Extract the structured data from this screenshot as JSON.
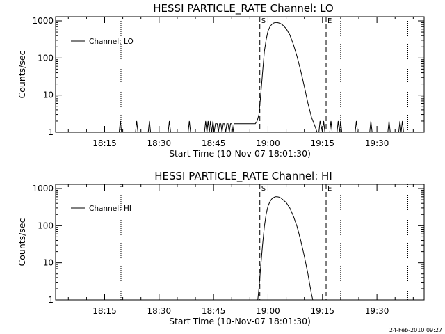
{
  "timestamp": "24-Feb-2010 09:27",
  "colors": {
    "background": "#ffffff",
    "foreground": "#000000"
  },
  "chart_data": [
    {
      "type": "line",
      "title": "HESSI PARTICLE_RATE Channel: LO",
      "xlabel": "Start Time (10-Nov-07 18:01:30)",
      "ylabel": "Counts/sec",
      "xlim": [
        "18:01:30",
        "19:43:00"
      ],
      "ylim": [
        1,
        1000
      ],
      "yscale": "log",
      "xticks": [
        "18:15",
        "18:30",
        "18:45",
        "19:00",
        "19:15",
        "19:30"
      ],
      "yticks": [
        "1",
        "10",
        "100",
        "1000"
      ],
      "legend": {
        "label": "Channel: LO",
        "position": "upper-left"
      },
      "markers": [
        {
          "label": "S",
          "time": "18:57:45",
          "style": "dashed"
        },
        {
          "label": "E",
          "time": "19:16:00",
          "style": "dashed"
        }
      ],
      "reference_lines": [
        {
          "time": "18:19:30",
          "style": "dotted"
        },
        {
          "time": "19:20:00",
          "style": "dotted"
        },
        {
          "time": "19:38:30",
          "style": "dotted"
        }
      ],
      "series": [
        {
          "name": "Channel: LO",
          "x": [
            "18:01:30",
            "18:19:00",
            "18:19:20",
            "18:19:40",
            "18:20:00",
            "18:23:30",
            "18:23:50",
            "18:24:10",
            "18:27:00",
            "18:27:20",
            "18:27:40",
            "18:32:30",
            "18:32:50",
            "18:33:10",
            "18:38:00",
            "18:38:20",
            "18:38:40",
            "18:42:30",
            "18:42:50",
            "18:43:10",
            "18:43:30",
            "18:43:50",
            "18:44:10",
            "18:44:30",
            "18:44:50",
            "18:45:10",
            "18:45:30",
            "18:46:00",
            "18:46:20",
            "18:46:40",
            "18:47:00",
            "18:47:20",
            "18:47:40",
            "18:48:00",
            "18:48:20",
            "18:48:40",
            "18:49:00",
            "18:49:20",
            "18:49:40",
            "18:50:00",
            "18:50:20",
            "18:50:40",
            "18:51:00",
            "18:56:30",
            "18:57:00",
            "18:57:30",
            "18:58:00",
            "18:58:30",
            "18:59:00",
            "18:59:30",
            "19:00:00",
            "19:00:30",
            "19:01:00",
            "19:01:30",
            "19:02:00",
            "19:02:30",
            "19:03:00",
            "19:03:30",
            "19:04:00",
            "19:05:00",
            "19:06:00",
            "19:07:00",
            "19:08:00",
            "19:09:00",
            "19:10:00",
            "19:11:00",
            "19:12:00",
            "19:13:00",
            "19:13:30",
            "19:14:00",
            "19:14:20",
            "19:15:00",
            "19:15:20",
            "19:15:40",
            "19:17:00",
            "19:17:20",
            "19:17:40",
            "19:19:00",
            "19:19:20",
            "19:19:40",
            "19:20:00",
            "19:20:20",
            "19:24:00",
            "19:24:20",
            "19:24:40",
            "19:28:00",
            "19:28:20",
            "19:28:40",
            "19:33:00",
            "19:33:20",
            "19:33:40",
            "19:36:00",
            "19:36:20",
            "19:36:40",
            "19:37:00",
            "19:37:20",
            "19:37:40",
            "19:43:00"
          ],
          "y": [
            1,
            1,
            2,
            1,
            1,
            1,
            2,
            1,
            1,
            2,
            1,
            1,
            2,
            1,
            1,
            2,
            1,
            1,
            2,
            1,
            2,
            1,
            2,
            1,
            2,
            1,
            1.7,
            1.7,
            1,
            1.7,
            1.7,
            1,
            1.7,
            1.7,
            1,
            1.7,
            1.7,
            1,
            1.7,
            1.7,
            1,
            1.7,
            1.7,
            1.7,
            2,
            3,
            10,
            40,
            150,
            320,
            540,
            690,
            800,
            870,
            900,
            900,
            880,
            840,
            780,
            620,
            420,
            230,
            110,
            45,
            17,
            6,
            2.5,
            1.4,
            1,
            1,
            2,
            1,
            2,
            1,
            1,
            2,
            1,
            1,
            2,
            1,
            2,
            1,
            1,
            2,
            1,
            1,
            2,
            1,
            1,
            2,
            1,
            1,
            2,
            1,
            2,
            1,
            1,
            1
          ]
        }
      ]
    },
    {
      "type": "line",
      "title": "HESSI PARTICLE_RATE Channel: HI",
      "xlabel": "Start Time (10-Nov-07 18:01:30)",
      "ylabel": "Counts/sec",
      "xlim": [
        "18:01:30",
        "19:43:00"
      ],
      "ylim": [
        1,
        1000
      ],
      "yscale": "log",
      "xticks": [
        "18:15",
        "18:30",
        "18:45",
        "19:00",
        "19:15",
        "19:30"
      ],
      "yticks": [
        "1",
        "10",
        "100",
        "1000"
      ],
      "legend": {
        "label": "Channel: HI",
        "position": "upper-left"
      },
      "markers": [
        {
          "label": "S",
          "time": "18:57:45",
          "style": "dashed"
        },
        {
          "label": "E",
          "time": "19:16:00",
          "style": "dashed"
        }
      ],
      "reference_lines": [
        {
          "time": "18:19:30",
          "style": "dotted"
        },
        {
          "time": "19:20:00",
          "style": "dotted"
        },
        {
          "time": "19:38:30",
          "style": "dotted"
        }
      ],
      "series": [
        {
          "name": "Channel: HI",
          "x": [
            "18:57:10",
            "18:57:30",
            "18:58:00",
            "18:58:30",
            "18:59:00",
            "18:59:30",
            "19:00:00",
            "19:00:30",
            "19:01:00",
            "19:01:30",
            "19:02:00",
            "19:02:30",
            "19:03:00",
            "19:03:30",
            "19:04:00",
            "19:05:00",
            "19:06:00",
            "19:07:00",
            "19:08:00",
            "19:09:00",
            "19:10:00",
            "19:11:00",
            "19:11:30",
            "19:12:00",
            "19:12:20"
          ],
          "y": [
            1,
            2,
            8,
            30,
            95,
            210,
            340,
            440,
            520,
            570,
            600,
            600,
            590,
            560,
            510,
            420,
            300,
            180,
            95,
            40,
            15,
            5,
            2.6,
            1.4,
            1
          ]
        }
      ]
    }
  ]
}
